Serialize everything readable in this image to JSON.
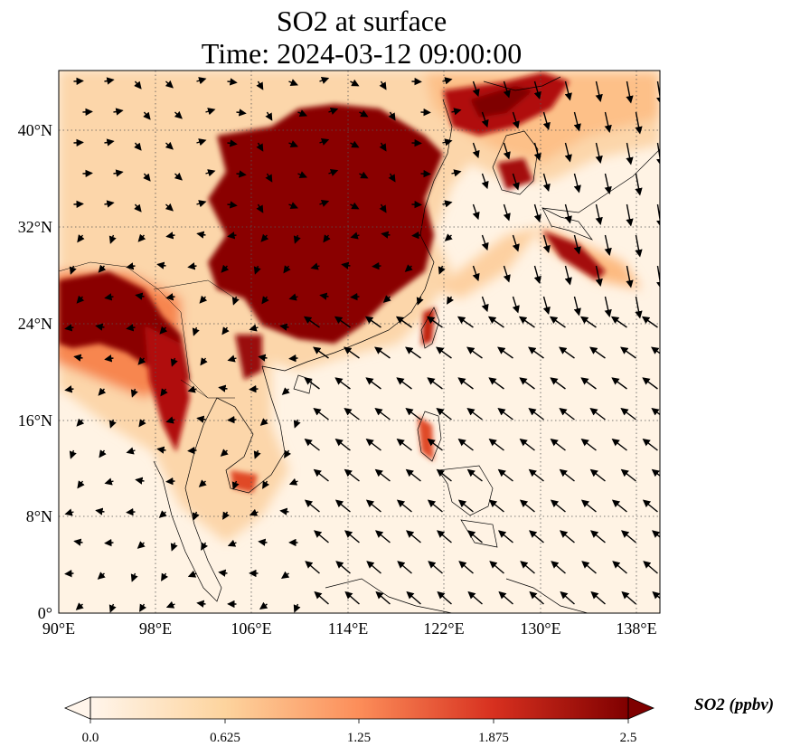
{
  "title": {
    "line1": "SO2 at surface",
    "line2": "Time: 2024-03-12 09:00:00"
  },
  "map": {
    "region": "East and Southeast Asia",
    "lon_range": [
      90,
      140
    ],
    "lat_range": [
      0,
      45
    ],
    "lon_ticks": [
      "90°E",
      "98°E",
      "106°E",
      "114°E",
      "122°E",
      "130°E",
      "138°E"
    ],
    "lat_ticks": [
      "0°",
      "8°N",
      "16°N",
      "24°N",
      "32°N",
      "40°N"
    ],
    "gridlines": "dotted",
    "field": "SO2 concentration",
    "overlay": "wind vectors"
  },
  "colorbar": {
    "label": "SO2 (ppbv)",
    "ticks": [
      "0.0",
      "0.625",
      "1.25",
      "1.875",
      "2.5"
    ],
    "min": 0,
    "max": 2.5,
    "colormap": [
      "#fff5eb",
      "#fdd49e",
      "#fc8d59",
      "#d7301f",
      "#7f0000"
    ],
    "extend": "both"
  }
}
